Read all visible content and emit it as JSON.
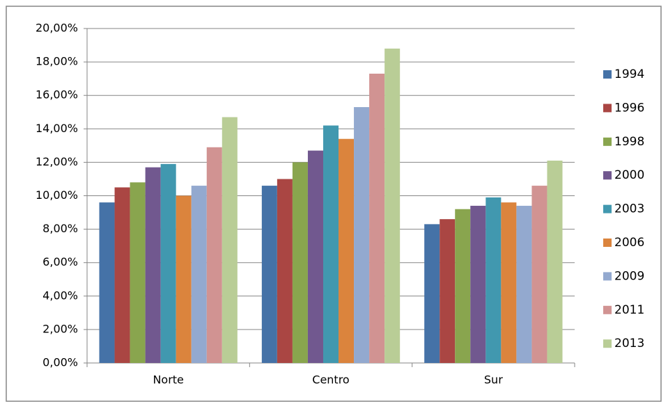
{
  "chart_data": {
    "type": "bar",
    "categories": [
      "Norte",
      "Centro",
      "Sur"
    ],
    "series": [
      {
        "name": "1994",
        "color": "#4572A7",
        "values": [
          9.6,
          10.6,
          8.3
        ]
      },
      {
        "name": "1996",
        "color": "#AA4643",
        "values": [
          10.5,
          11.0,
          8.6
        ]
      },
      {
        "name": "1998",
        "color": "#89A54E",
        "values": [
          10.8,
          12.0,
          9.2
        ]
      },
      {
        "name": "2000",
        "color": "#71588F",
        "values": [
          11.7,
          12.7,
          9.4
        ]
      },
      {
        "name": "2003",
        "color": "#4198AF",
        "values": [
          11.9,
          14.2,
          9.9
        ]
      },
      {
        "name": "2006",
        "color": "#DB843D",
        "values": [
          10.0,
          13.4,
          9.6
        ]
      },
      {
        "name": "2009",
        "color": "#93A9CF",
        "values": [
          10.6,
          15.3,
          9.4
        ]
      },
      {
        "name": "2011",
        "color": "#D19392",
        "values": [
          12.9,
          17.3,
          10.6
        ]
      },
      {
        "name": "2013",
        "color": "#B9CD96",
        "values": [
          14.7,
          18.8,
          12.1
        ]
      }
    ],
    "ylim": [
      0,
      20
    ],
    "yticks": [
      {
        "value": 0,
        "label": "0,00%"
      },
      {
        "value": 2,
        "label": "2,00%"
      },
      {
        "value": 4,
        "label": "4,00%"
      },
      {
        "value": 6,
        "label": "6,00%"
      },
      {
        "value": 8,
        "label": "8,00%"
      },
      {
        "value": 10,
        "label": "10,00%"
      },
      {
        "value": 12,
        "label": "12,00%"
      },
      {
        "value": 14,
        "label": "14,00%"
      },
      {
        "value": 16,
        "label": "16,00%"
      },
      {
        "value": 18,
        "label": "18,00%"
      },
      {
        "value": 20,
        "label": "20,00%"
      }
    ],
    "grid": true,
    "legend": "right"
  }
}
